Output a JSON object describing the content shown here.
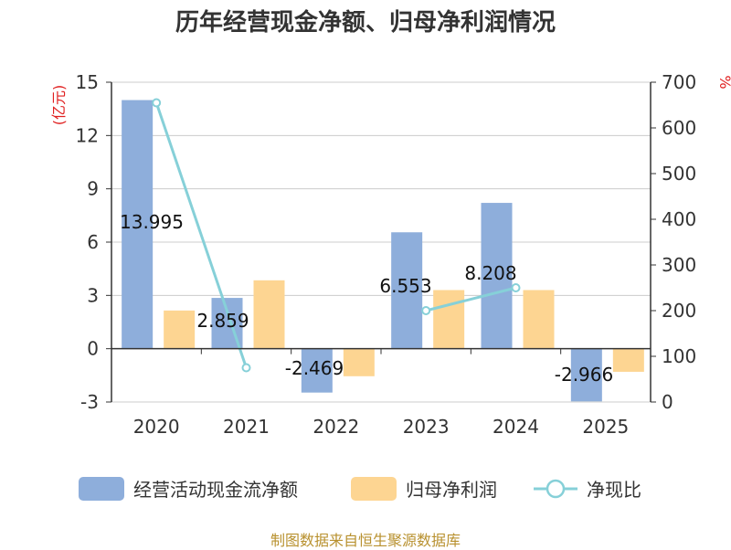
{
  "title": "历年经营现金净额、归母净利润情况",
  "source": "制图数据来自恒生聚源数据库",
  "colors": {
    "cash": "#8eaedb",
    "profit": "#fdd592",
    "ratio": "#86d0d8",
    "unit": "#e02020"
  },
  "chart_data": {
    "type": "bar",
    "categories": [
      "2020",
      "2021",
      "2022",
      "2023",
      "2024",
      "2025"
    ],
    "series": [
      {
        "name": "经营活动现金流净额",
        "type": "bar",
        "axis": "left",
        "values": [
          13.995,
          2.859,
          -2.469,
          6.553,
          8.208,
          -2.966
        ],
        "labels": [
          "13.995",
          "2.859",
          "-2.469",
          "6.553",
          "8.208",
          "-2.966"
        ]
      },
      {
        "name": "归母净利润",
        "type": "bar",
        "axis": "left",
        "values": [
          2.15,
          3.85,
          -1.55,
          3.3,
          3.3,
          -1.3
        ]
      },
      {
        "name": "净现比",
        "type": "line",
        "axis": "right",
        "values": [
          655,
          75,
          null,
          200,
          250,
          null
        ]
      }
    ],
    "y_left": {
      "label": "(亿元)",
      "min": -3,
      "max": 15,
      "ticks": [
        -3,
        0,
        3,
        6,
        9,
        12,
        15
      ],
      "tick_labels": [
        "-3",
        "0",
        "3",
        "6",
        "9",
        "12",
        "15"
      ]
    },
    "y_right": {
      "label": "%",
      "min": 0,
      "max": 700,
      "ticks": [
        0,
        100,
        200,
        300,
        400,
        500,
        600,
        700
      ],
      "tick_labels": [
        "0",
        "100",
        "200",
        "300",
        "400",
        "500",
        "600",
        "700"
      ]
    },
    "grid": true,
    "legend": "bottom"
  }
}
